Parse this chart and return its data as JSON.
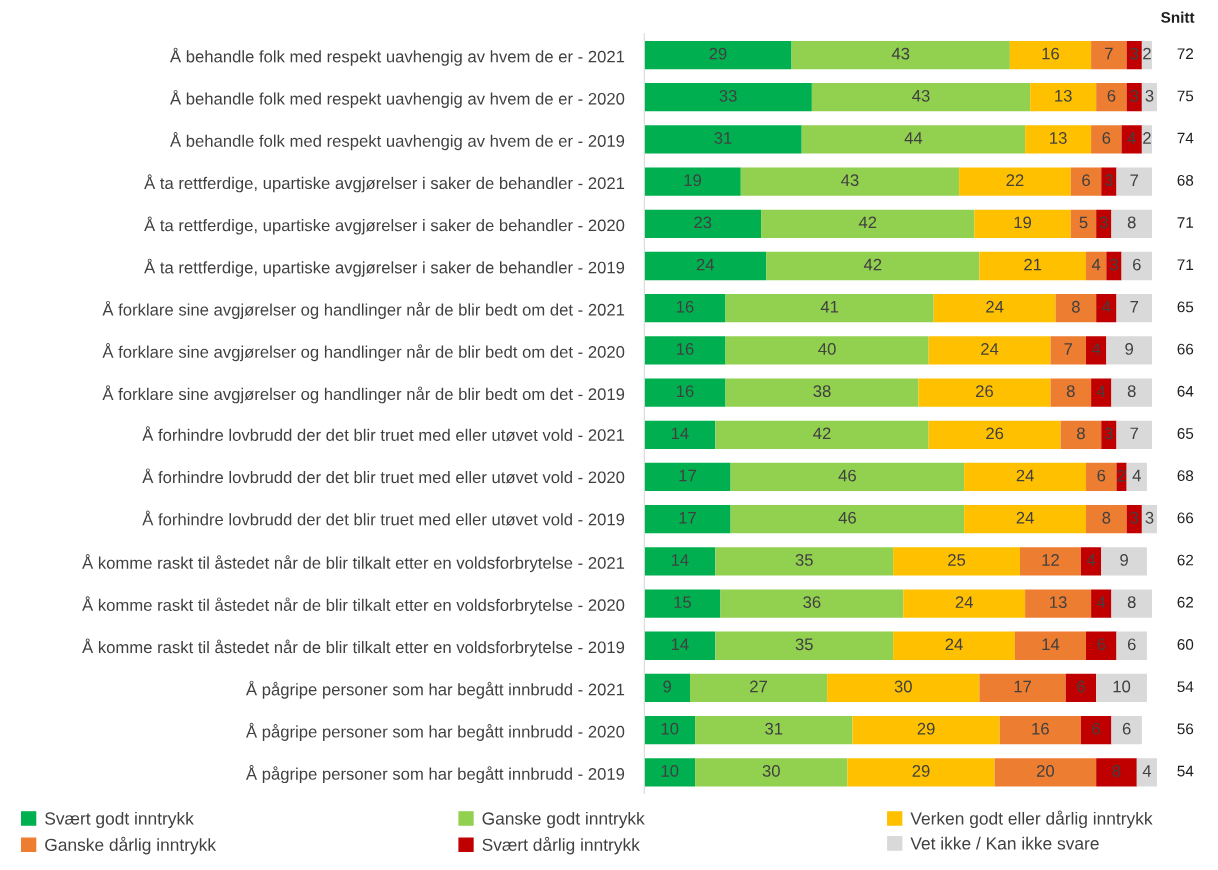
{
  "chart_data": {
    "type": "bar",
    "orientation": "horizontal",
    "stacked": true,
    "data_labels": true,
    "grid": false,
    "legend": "bottom",
    "xlim": [
      0,
      101
    ],
    "tick_labels": "y",
    "categories": [
      "Å behandle folk med respekt uavhengig av hvem de er - 2021",
      "Å behandle folk med respekt uavhengig av hvem de er - 2020",
      "Å behandle folk med respekt uavhengig av hvem de er - 2019",
      "Å ta rettferdige, upartiske avgjørelser i saker de behandler - 2021",
      "Å ta rettferdige, upartiske avgjørelser i saker de behandler - 2020",
      "Å ta rettferdige, upartiske avgjørelser i saker de behandler - 2019",
      "Å forklare sine avgjørelser og handlinger når de blir bedt om det - 2021",
      "Å forklare sine avgjørelser og handlinger når de blir bedt om det - 2020",
      "Å forklare sine avgjørelser og handlinger når de blir bedt om det - 2019",
      "Å forhindre lovbrudd der det blir truet med eller utøvet vold - 2021",
      "Å forhindre lovbrudd der det blir truet med eller utøvet vold - 2020",
      "Å forhindre lovbrudd der det blir truet med eller utøvet vold - 2019",
      "Å komme raskt til åstedet når de blir tilkalt etter en voldsforbrytelse - 2021",
      "Å komme raskt til åstedet når de blir tilkalt etter en voldsforbrytelse - 2020",
      "Å komme raskt til åstedet når de blir tilkalt etter en voldsforbrytelse - 2019",
      "Å pågripe personer som har begått innbrudd - 2021",
      "Å pågripe personer som har begått innbrudd - 2020",
      "Å pågripe personer som har begått innbrudd - 2019"
    ],
    "series": [
      {
        "name": "Svært godt inntrykk",
        "color": "#00b050",
        "values": [
          29,
          33,
          31,
          19,
          23,
          24,
          16,
          16,
          16,
          14,
          17,
          17,
          14,
          15,
          14,
          9,
          10,
          10
        ]
      },
      {
        "name": "Ganske godt inntrykk",
        "color": "#92d050",
        "values": [
          43,
          43,
          44,
          43,
          42,
          42,
          41,
          40,
          38,
          42,
          46,
          46,
          35,
          36,
          35,
          27,
          31,
          30
        ]
      },
      {
        "name": "Verken godt eller dårlig inntrykk",
        "color": "#ffc000",
        "values": [
          16,
          13,
          13,
          22,
          19,
          21,
          24,
          24,
          26,
          26,
          24,
          24,
          25,
          24,
          24,
          30,
          29,
          29
        ]
      },
      {
        "name": "Ganske dårlig inntrykk",
        "color": "#ed7d31",
        "values": [
          7,
          6,
          6,
          6,
          5,
          4,
          8,
          7,
          8,
          8,
          6,
          8,
          12,
          13,
          14,
          17,
          16,
          20
        ]
      },
      {
        "name": "Svært dårlig inntrykk",
        "color": "#c00000",
        "values": [
          3,
          3,
          4,
          3,
          3,
          3,
          4,
          4,
          4,
          3,
          2,
          3,
          4,
          4,
          6,
          6,
          6,
          8
        ]
      },
      {
        "name": "Vet ikke / Kan ikke svare",
        "color": "#d9d9d9",
        "values": [
          2,
          3,
          2,
          7,
          8,
          6,
          7,
          9,
          8,
          7,
          4,
          3,
          9,
          8,
          6,
          10,
          6,
          4
        ]
      }
    ],
    "annotations": [
      "Snitt",
      "72",
      "75",
      "74",
      "68",
      "71",
      "71",
      "65",
      "66",
      "64",
      "65",
      "68",
      "66",
      "62",
      "62",
      "60",
      "54",
      "56",
      "54"
    ]
  }
}
